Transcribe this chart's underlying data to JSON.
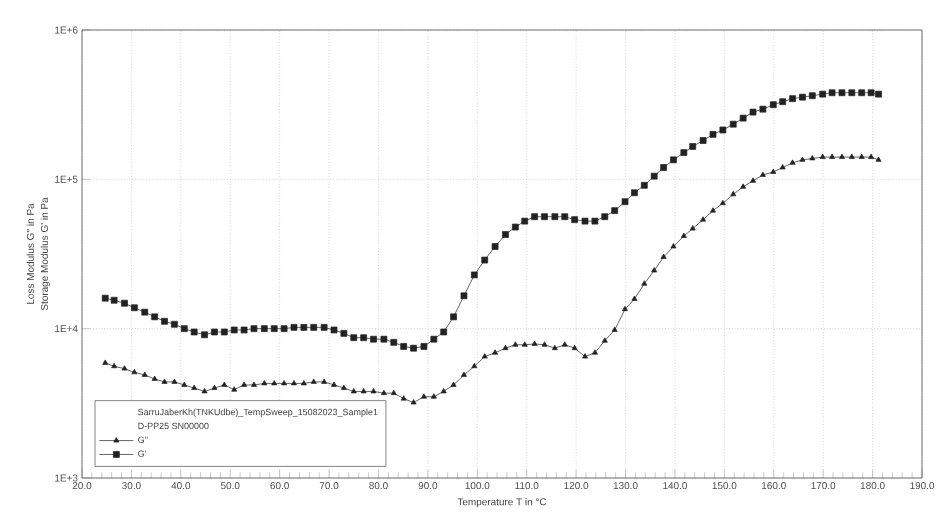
{
  "chart_data": {
    "type": "line",
    "xlabel": "Temperature T in °C",
    "ylabel": "Storage Modulus G' in Pa",
    "legend_title": "SarruJaberKh(TNKUdbe)_TempSweep_15082023_Sample1",
    "annotations": [
      "Loss Modulus G'' in Pa",
      "D-PP25 SN00000"
    ],
    "x": [
      24.7,
      26.5,
      28.6,
      30.6,
      32.7,
      34.7,
      36.7,
      38.7,
      40.7,
      42.7,
      44.8,
      46.8,
      48.8,
      50.8,
      52.8,
      54.8,
      56.9,
      58.9,
      60.9,
      62.9,
      64.9,
      66.9,
      69.0,
      71.0,
      73.0,
      75.0,
      77.0,
      79.0,
      81.1,
      83.1,
      85.1,
      87.1,
      89.2,
      91.2,
      93.2,
      95.2,
      97.3,
      99.4,
      101.5,
      103.6,
      105.7,
      107.7,
      109.6,
      111.6,
      113.6,
      115.7,
      117.7,
      119.7,
      121.8,
      123.8,
      125.8,
      127.8,
      129.9,
      131.8,
      133.8,
      135.8,
      137.7,
      139.7,
      141.8,
      143.6,
      145.7,
      147.7,
      149.7,
      151.8,
      153.8,
      155.8,
      157.8,
      159.9,
      161.8,
      163.8,
      165.8,
      167.8,
      169.9,
      171.8,
      173.8,
      175.8,
      177.8,
      179.7,
      181.2
    ],
    "series": [
      {
        "name": "G''",
        "color": "#222222",
        "marker": "triangle",
        "values": [
          5900,
          5600,
          5400,
          5100,
          4900,
          4600,
          4400,
          4400,
          4200,
          4000,
          3800,
          4000,
          4200,
          3900,
          4200,
          4200,
          4300,
          4300,
          4300,
          4300,
          4300,
          4400,
          4400,
          4200,
          4000,
          3800,
          3800,
          3800,
          3700,
          3700,
          3400,
          3200,
          3500,
          3500,
          3800,
          4200,
          4900,
          5600,
          6500,
          6900,
          7400,
          7800,
          7800,
          7900,
          7800,
          7400,
          7800,
          7400,
          6500,
          6900,
          8300,
          9800,
          13500,
          15800,
          20000,
          24500,
          30200,
          35500,
          41700,
          46800,
          53700,
          61700,
          69200,
          79400,
          89100,
          97700,
          107000,
          112000,
          120000,
          129000,
          135000,
          138000,
          141000,
          141000,
          141000,
          141000,
          141000,
          141000,
          135000
        ]
      },
      {
        "name": "G'",
        "color": "#222222",
        "marker": "square",
        "values": [
          16000,
          15500,
          14800,
          13800,
          12900,
          12000,
          11200,
          10700,
          10000,
          9500,
          9100,
          9500,
          9500,
          9800,
          9800,
          10000,
          10000,
          10000,
          10000,
          10200,
          10200,
          10200,
          10200,
          9800,
          9300,
          8700,
          8700,
          8500,
          8500,
          8100,
          7600,
          7400,
          7600,
          8500,
          9500,
          12000,
          16600,
          22900,
          28800,
          35500,
          42700,
          47900,
          52500,
          56200,
          56200,
          56200,
          56200,
          53700,
          52500,
          52500,
          56200,
          61700,
          70800,
          81300,
          91200,
          105000,
          120000,
          135000,
          151000,
          166000,
          182000,
          200000,
          214000,
          234000,
          257000,
          282000,
          295000,
          316000,
          331000,
          347000,
          355000,
          363000,
          372000,
          380000,
          380000,
          380000,
          380000,
          380000,
          372000
        ]
      }
    ],
    "xlim": [
      20,
      190
    ],
    "xticks": [
      {
        "value": 20,
        "label": "20.0"
      },
      {
        "value": 30,
        "label": "30.0"
      },
      {
        "value": 40,
        "label": "40.0"
      },
      {
        "value": 50,
        "label": "50.0"
      },
      {
        "value": 60,
        "label": "60.0"
      },
      {
        "value": 70,
        "label": "70.0"
      },
      {
        "value": 80,
        "label": "80.0"
      },
      {
        "value": 90,
        "label": "90.0"
      },
      {
        "value": 100,
        "label": "100.0"
      },
      {
        "value": 110,
        "label": "110.0"
      },
      {
        "value": 120,
        "label": "120.0"
      },
      {
        "value": 130,
        "label": "130.0"
      },
      {
        "value": 140,
        "label": "140.0"
      },
      {
        "value": 150,
        "label": "150.0"
      },
      {
        "value": 160,
        "label": "160.0"
      },
      {
        "value": 170,
        "label": "170.0"
      },
      {
        "value": 180,
        "label": "180.0"
      },
      {
        "value": 190,
        "label": "190.0"
      }
    ],
    "ylim": [
      1000,
      1000000
    ],
    "yticks": [
      {
        "value": 1000,
        "label": "1E+3"
      },
      {
        "value": 10000,
        "label": "1E+4"
      },
      {
        "value": 100000,
        "label": "1E+5"
      },
      {
        "value": 1000000,
        "label": "1E+6"
      }
    ],
    "log": "y",
    "grid": true,
    "legend": "bottom left",
    "line_style": "solid"
  }
}
